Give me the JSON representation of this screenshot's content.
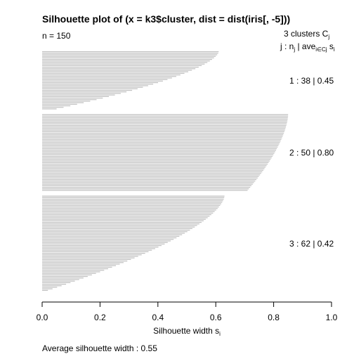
{
  "chart_data": {
    "type": "bar",
    "title": "Silhouette plot of (x = k3$cluster, dist = dist(iris[, -5]))",
    "n_label": "n = 150",
    "header": {
      "clusters_text": "3  clusters  C",
      "clusters_sub": "j",
      "col_j": "j :  n",
      "col_j_sub": "j",
      "col_ave": " | ave",
      "col_ave_sub": "i∈Cj",
      "col_s": "  s",
      "col_s_sub": "i"
    },
    "xlabel": "Silhouette width s",
    "xlabel_sub": "i",
    "xlim": [
      0,
      1
    ],
    "ticks": [
      0,
      0.2,
      0.4,
      0.6,
      0.8,
      1
    ],
    "tick_labels": [
      "0.0",
      "0.2",
      "0.4",
      "0.6",
      "0.8",
      "1.0"
    ],
    "bar_color": "#bebebe",
    "footer": "Average silhouette width :  0.55",
    "clusters": [
      {
        "j": 1,
        "n": 38,
        "avg": 0.45,
        "label": "1 :   38  |  0.45",
        "max": 0.61,
        "min": 0.05
      },
      {
        "j": 2,
        "n": 50,
        "avg": 0.8,
        "label": "2 :   50  |  0.80",
        "max": 0.85,
        "min": 0.71
      },
      {
        "j": 3,
        "n": 62,
        "avg": 0.42,
        "label": "3 :   62  |  0.42",
        "max": 0.63,
        "min": 0.02
      }
    ]
  }
}
